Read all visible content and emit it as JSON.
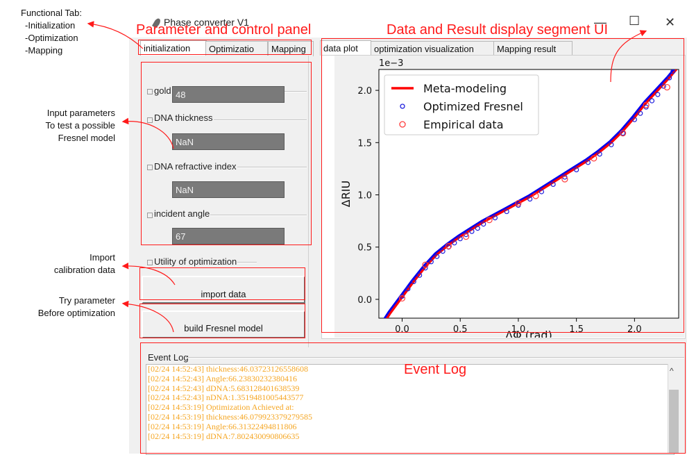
{
  "annotations": {
    "functional_tab": [
      "Functional Tab:",
      "-Initialization",
      "-Optimization",
      "-Mapping"
    ],
    "input_parameters": [
      "Input parameters",
      "To test a possible",
      "Fresnel model"
    ],
    "import_calibration": [
      "Import",
      "calibration data"
    ],
    "try_parameter": [
      "Try parameter",
      "Before optimization"
    ],
    "param_panel": "Parameter and control panel",
    "display_segment": "Data and Result display segment UI",
    "event_log": "Event Log"
  },
  "window": {
    "title": "Phase converter V1",
    "minimize": "—",
    "maximize": "☐",
    "close": "✕"
  },
  "left_tabs": [
    "initialization",
    "Optimizatio",
    "Mapping"
  ],
  "fields": [
    {
      "label": "gold thickness (nm)",
      "value": "48"
    },
    {
      "label": "DNA thickness",
      "value": "NaN"
    },
    {
      "label": "DNA refractive index",
      "value": "NaN"
    },
    {
      "label": "incident angle",
      "value": "67"
    }
  ],
  "utility": {
    "label": "Utility of optimization",
    "import_button": "import data",
    "build_button": "build Fresnel model"
  },
  "right_tabs": [
    "data plot",
    "optimization visualization",
    "Mapping result"
  ],
  "event_log": {
    "title": "Event Log",
    "scroll_up": "^",
    "lines": [
      "[02/24 14:52:43] thickness:46.03723126558608",
      "[02/24 14:52:43] Angle:66.23830232380416",
      "[02/24 14:52:43] dDNA:5.683128401638539",
      "[02/24 14:52:43] nDNA:1.3519481005443577",
      "[02/24 14:53:19] Optimization Achieved at:",
      "[02/24 14:53:19] thickness:46.079923379279585",
      "[02/24 14:53:19] Angle:66.31322494811806",
      "[02/24 14:53:19] dDNA:7.802430090806635"
    ]
  },
  "chart_data": {
    "type": "line",
    "xlabel": "ΔΦ (rad)",
    "ylabel": "ΔRIU",
    "scale_label": "1e−3",
    "xlim": [
      -0.2,
      2.38
    ],
    "ylim": [
      -0.18,
      2.2
    ],
    "xticks": [
      "0.0",
      "0.5",
      "1.0",
      "1.5",
      "2.0"
    ],
    "yticks": [
      "0.0",
      "0.5",
      "1.0",
      "1.5",
      "2.0"
    ],
    "legend_position": "top-left",
    "colors": {
      "meta": "#ff0000",
      "fresnel": "#1f1fdd",
      "empirical": "#ff3b3b",
      "fresnel_line": "#0000ee"
    },
    "series": [
      {
        "name": "Meta-modeling",
        "style": "line",
        "x": [
          -0.2,
          -0.1,
          0,
          0.1,
          0.2,
          0.3,
          0.4,
          0.5,
          0.6,
          0.7,
          0.8,
          0.9,
          1.0,
          1.1,
          1.2,
          1.3,
          1.4,
          1.5,
          1.6,
          1.7,
          1.8,
          1.9,
          2.0,
          2.1,
          2.2,
          2.3,
          2.36
        ],
        "y": [
          -0.3,
          -0.13,
          0.02,
          0.17,
          0.31,
          0.43,
          0.52,
          0.6,
          0.67,
          0.74,
          0.8,
          0.86,
          0.92,
          0.98,
          1.05,
          1.12,
          1.19,
          1.26,
          1.33,
          1.41,
          1.5,
          1.61,
          1.74,
          1.88,
          2.0,
          2.12,
          2.2
        ]
      },
      {
        "name": "Optimized Fresnel",
        "style": "markers",
        "x": [
          0.0,
          0.05,
          0.1,
          0.15,
          0.2,
          0.25,
          0.3,
          0.35,
          0.4,
          0.45,
          0.5,
          0.55,
          0.6,
          0.65,
          0.7,
          0.8,
          0.9,
          1.0,
          1.1,
          1.2,
          1.3,
          1.4,
          1.5,
          1.6,
          1.7,
          1.8,
          1.9,
          2.0,
          2.05,
          2.1,
          2.15,
          2.2,
          2.25,
          2.3,
          2.33
        ],
        "y": [
          0.03,
          0.1,
          0.17,
          0.23,
          0.3,
          0.36,
          0.41,
          0.46,
          0.5,
          0.54,
          0.58,
          0.62,
          0.65,
          0.68,
          0.72,
          0.78,
          0.84,
          0.9,
          0.96,
          1.03,
          1.1,
          1.17,
          1.24,
          1.31,
          1.39,
          1.48,
          1.59,
          1.72,
          1.78,
          1.84,
          1.9,
          1.96,
          2.04,
          2.12,
          2.18
        ]
      },
      {
        "name": "Empirical data",
        "style": "markers",
        "x": [
          0.0,
          0.2,
          0.4,
          0.55,
          0.75,
          1.0,
          1.15,
          1.4,
          1.65,
          1.9,
          2.1,
          2.28
        ],
        "y": [
          0.01,
          0.33,
          0.51,
          0.6,
          0.76,
          0.92,
          0.99,
          1.15,
          1.35,
          1.59,
          1.86,
          2.03
        ]
      }
    ]
  }
}
